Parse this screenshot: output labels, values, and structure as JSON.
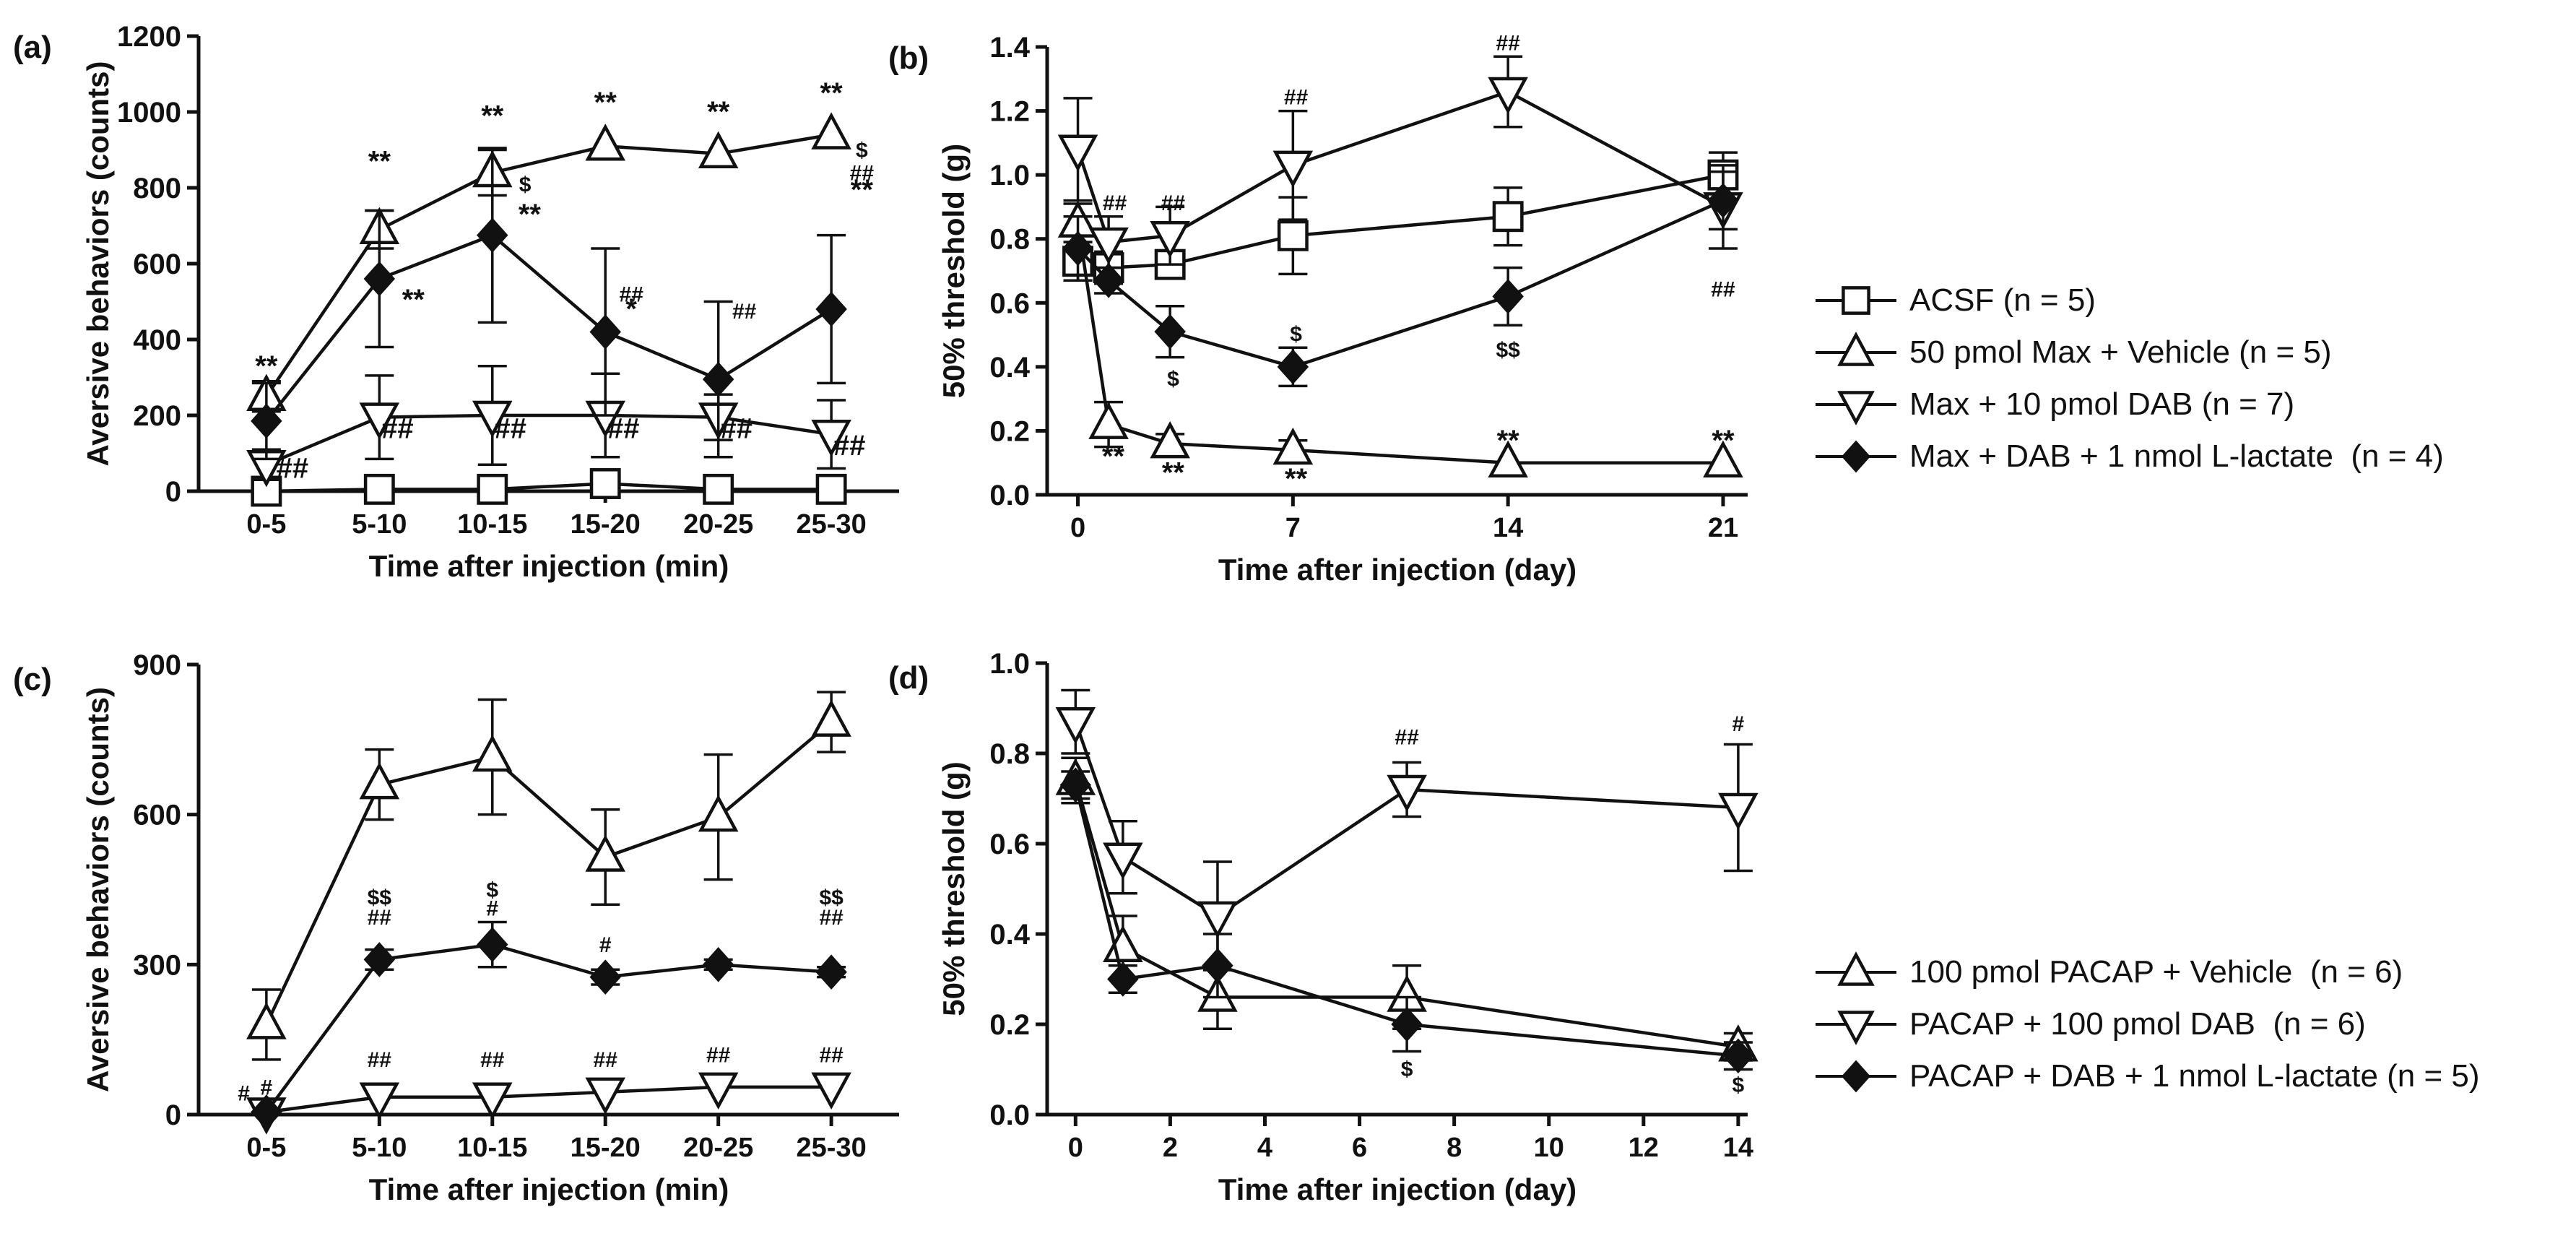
{
  "chart_data": [
    {
      "panel": "(a)",
      "type": "line",
      "xlabel": "Time after injection (min)",
      "ylabel": "Aversive behaviors (counts)",
      "categories": [
        "0-5",
        "5-10",
        "10-15",
        "15-20",
        "20-25",
        "25-30"
      ],
      "ylim": [
        0,
        1200
      ],
      "yticks": [
        0,
        200,
        400,
        600,
        800,
        1000,
        1200
      ],
      "series": [
        {
          "name": "ACSF (n = 5)",
          "marker": "square",
          "values": [
            0,
            5,
            5,
            20,
            5,
            5
          ],
          "err": [
            0,
            0,
            0,
            10,
            0,
            0
          ]
        },
        {
          "name": "50 pmol Max + Vehicle (n = 5)",
          "marker": "triangle-up",
          "values": [
            250,
            690,
            840,
            910,
            890,
            940
          ],
          "err": [
            40,
            50,
            60,
            0,
            0,
            0
          ]
        },
        {
          "name": "Max + 10 pmol DAB (n = 7)",
          "marker": "triangle-down",
          "values": [
            70,
            195,
            200,
            200,
            195,
            150
          ],
          "err": [
            40,
            110,
            130,
            110,
            60,
            90
          ]
        },
        {
          "name": "Max + DAB + 1 nmol L-lactate  (n = 4)",
          "marker": "diamond",
          "values": [
            185,
            560,
            675,
            420,
            295,
            480
          ],
          "err": [
            100,
            180,
            230,
            220,
            205,
            195
          ]
        }
      ],
      "annotations": [
        {
          "ci": 0,
          "y": 305,
          "text": "**"
        },
        {
          "ci": 1,
          "y": 845,
          "text": "**"
        },
        {
          "ci": 2,
          "y": 965,
          "text": "**"
        },
        {
          "ci": 3,
          "y": 1000,
          "text": "**"
        },
        {
          "ci": 4,
          "y": 975,
          "text": "**"
        },
        {
          "ci": 5,
          "y": 1025,
          "text": "**"
        },
        {
          "ci": 0,
          "y": 35,
          "text": "##",
          "dx": 0.23
        },
        {
          "ci": 1,
          "y": 140,
          "text": "##",
          "dx": 0.16
        },
        {
          "ci": 2,
          "y": 140,
          "text": "##",
          "dx": 0.16
        },
        {
          "ci": 3,
          "y": 140,
          "text": "##",
          "dx": 0.16
        },
        {
          "ci": 4,
          "y": 140,
          "text": "##",
          "dx": 0.16
        },
        {
          "ci": 5,
          "y": 95,
          "text": "##",
          "dx": 0.16
        },
        {
          "ci": 1,
          "y": 480,
          "text": "**",
          "dx": 0.3
        },
        {
          "ci": 2,
          "y": 705,
          "text": "**",
          "dx": 0.33
        },
        {
          "ci": 2,
          "y": 790,
          "text": "$",
          "dx": 0.29,
          "small": true
        },
        {
          "ci": 3,
          "y": 500,
          "text": "##",
          "dx": 0.23,
          "small": true
        },
        {
          "ci": 3,
          "y": 455,
          "text": "*",
          "dx": 0.23
        },
        {
          "ci": 4,
          "y": 455,
          "text": "##",
          "dx": 0.23,
          "small": true
        },
        {
          "ci": 5,
          "y": 880,
          "text": "$",
          "dx": 0.27,
          "small": true
        },
        {
          "ci": 5,
          "y": 820,
          "text": "##",
          "dx": 0.27,
          "small": true
        },
        {
          "ci": 5,
          "y": 770,
          "text": "**",
          "dx": 0.27
        }
      ]
    },
    {
      "panel": "(b)",
      "type": "line",
      "xlabel": "Time after injection (day)",
      "ylabel": "50% threshold (g)",
      "xlim": [
        -1,
        21.8
      ],
      "ylim": [
        0,
        1.4
      ],
      "xticks": [
        0,
        7,
        14,
        21
      ],
      "yticks": [
        0.0,
        0.2,
        0.4,
        0.6,
        0.8,
        1.0,
        1.2,
        1.4
      ],
      "series": [
        {
          "name": "ACSF (n = 5)",
          "marker": "square",
          "x": [
            0,
            1,
            3,
            7,
            14,
            21
          ],
          "values": [
            0.73,
            0.71,
            0.72,
            0.81,
            0.87,
            1.0
          ],
          "err": [
            0.06,
            0.05,
            0.04,
            0.12,
            0.09,
            0.07
          ]
        },
        {
          "name": "50 pmol Max + Vehicle (n = 5)",
          "marker": "triangle-up",
          "x": [
            0,
            1,
            3,
            7,
            14,
            21
          ],
          "values": [
            0.85,
            0.22,
            0.16,
            0.14,
            0.1,
            0.1
          ],
          "err": [
            0.06,
            0.07,
            0.03,
            0.03,
            0,
            0
          ]
        },
        {
          "name": "Max + 10 pmol DAB (n = 7)",
          "marker": "triangle-down",
          "x": [
            0,
            1,
            3,
            7,
            14,
            21
          ],
          "values": [
            1.08,
            0.79,
            0.81,
            1.03,
            1.26,
            0.9
          ],
          "err": [
            0.16,
            0.08,
            0.09,
            0.17,
            0.11,
            0.13
          ]
        },
        {
          "name": "Max + DAB + 1 nmol L-lactate  (n = 4)",
          "marker": "diamond",
          "x": [
            0,
            1,
            3,
            7,
            14,
            21
          ],
          "values": [
            0.77,
            0.67,
            0.51,
            0.4,
            0.62,
            0.92
          ],
          "err": [
            0.1,
            0.04,
            0.08,
            0.06,
            0.09,
            0.09
          ]
        }
      ],
      "annotations": [
        {
          "x": 1.15,
          "y": 0.09,
          "text": "**"
        },
        {
          "x": 3.1,
          "y": 0.04,
          "text": "**"
        },
        {
          "x": 7.1,
          "y": 0.02,
          "text": "**"
        },
        {
          "x": 14,
          "y": 0.14,
          "text": "**"
        },
        {
          "x": 21,
          "y": 0.14,
          "text": "**"
        },
        {
          "x": 1.2,
          "y": 0.89,
          "text": "##",
          "small": true
        },
        {
          "x": 3.1,
          "y": 0.89,
          "text": "##",
          "small": true
        },
        {
          "x": 7.1,
          "y": 1.22,
          "text": "##",
          "small": true
        },
        {
          "x": 14,
          "y": 1.39,
          "text": "##",
          "small": true
        },
        {
          "x": 21,
          "y": 0.62,
          "text": "##",
          "small": true
        },
        {
          "x": 3.1,
          "y": 0.34,
          "text": "$",
          "small": true
        },
        {
          "x": 7.1,
          "y": 0.48,
          "text": "$",
          "small": true
        },
        {
          "x": 14,
          "y": 0.43,
          "text": "$$",
          "small": true
        }
      ]
    },
    {
      "panel": "(c)",
      "type": "line",
      "xlabel": "Time after injection (min)",
      "ylabel": "Aversive behaviors (counts)",
      "categories": [
        "0-5",
        "5-10",
        "10-15",
        "15-20",
        "20-25",
        "25-30"
      ],
      "ylim": [
        0,
        900
      ],
      "yticks": [
        0,
        300,
        600,
        900
      ],
      "series": [
        {
          "name": "100 pmol PACAP + Vehicle  (n = 6)",
          "marker": "triangle-up",
          "values": [
            180,
            660,
            715,
            515,
            595,
            785
          ],
          "err": [
            70,
            70,
            115,
            95,
            125,
            60
          ]
        },
        {
          "name": "PACAP + 100 pmol DAB  (n = 6)",
          "marker": "triangle-down",
          "values": [
            5,
            35,
            35,
            45,
            55,
            55
          ],
          "err": [
            0,
            0,
            0,
            0,
            0,
            0
          ]
        },
        {
          "name": "PACAP + DAB + 1 nmol L-lactate (n = 5)",
          "marker": "diamond",
          "values": [
            5,
            310,
            340,
            275,
            300,
            285
          ],
          "err": [
            0,
            20,
            45,
            15,
            10,
            10
          ]
        }
      ],
      "annotations": [
        {
          "ci": 0,
          "y": 28,
          "text": "#",
          "dx": -0.2,
          "small": true
        },
        {
          "ci": 0,
          "y": 40,
          "text": "#",
          "small": true
        },
        {
          "ci": 1,
          "y": 95,
          "text": "##",
          "small": true
        },
        {
          "ci": 2,
          "y": 95,
          "text": "##",
          "small": true
        },
        {
          "ci": 3,
          "y": 95,
          "text": "##",
          "small": true
        },
        {
          "ci": 4,
          "y": 105,
          "text": "##",
          "small": true
        },
        {
          "ci": 5,
          "y": 105,
          "text": "##",
          "small": true
        },
        {
          "ci": 1,
          "y": 420,
          "text": "$$",
          "small": true
        },
        {
          "ci": 1,
          "y": 380,
          "text": "##",
          "small": true
        },
        {
          "ci": 2,
          "y": 435,
          "text": "$",
          "small": true
        },
        {
          "ci": 2,
          "y": 398,
          "text": "#",
          "small": true
        },
        {
          "ci": 3,
          "y": 325,
          "text": "#",
          "small": true
        },
        {
          "ci": 5,
          "y": 420,
          "text": "$$",
          "small": true
        },
        {
          "ci": 5,
          "y": 380,
          "text": "##",
          "small": true
        }
      ]
    },
    {
      "panel": "(d)",
      "type": "line",
      "xlabel": "Time after injection (day)",
      "ylabel": "50% threshold (g)",
      "xlim": [
        -0.6,
        14.2
      ],
      "ylim": [
        0,
        1.0
      ],
      "xticks": [
        0,
        2,
        4,
        6,
        8,
        10,
        12,
        14
      ],
      "yticks": [
        0.0,
        0.2,
        0.4,
        0.6,
        0.8,
        1.0
      ],
      "series": [
        {
          "name": "100 pmol PACAP + Vehicle  (n = 6)",
          "marker": "triangle-up",
          "x": [
            0,
            1,
            3,
            7,
            14
          ],
          "values": [
            0.74,
            0.37,
            0.26,
            0.26,
            0.15
          ],
          "err": [
            0.05,
            0.07,
            0.07,
            0.07,
            0.03
          ]
        },
        {
          "name": "PACAP + 100 pmol DAB  (n = 6)",
          "marker": "triangle-down",
          "x": [
            0,
            1,
            3,
            7,
            14
          ],
          "values": [
            0.87,
            0.57,
            0.44,
            0.72,
            0.68
          ],
          "err": [
            0.07,
            0.08,
            0.12,
            0.06,
            0.14
          ]
        },
        {
          "name": "PACAP + DAB + 1 nmol L-lactate (n = 5)",
          "marker": "diamond",
          "x": [
            0,
            1,
            3,
            7,
            14
          ],
          "values": [
            0.73,
            0.3,
            0.33,
            0.2,
            0.13
          ],
          "err": [
            0.03,
            0.03,
            0.07,
            0.06,
            0.03
          ]
        }
      ],
      "annotations": [
        {
          "x": 7,
          "y": 0.82,
          "text": "##",
          "small": true
        },
        {
          "x": 14,
          "y": 0.85,
          "text": "#",
          "small": true
        },
        {
          "x": 7,
          "y": 0.085,
          "text": "$",
          "small": true
        },
        {
          "x": 14,
          "y": 0.05,
          "text": "$",
          "small": true
        }
      ]
    }
  ],
  "legend_top": [
    {
      "marker": "square",
      "label": "ACSF (n = 5)"
    },
    {
      "marker": "triangle-up",
      "label": "50 pmol Max + Vehicle (n = 5)"
    },
    {
      "marker": "triangle-down",
      "label": "Max + 10 pmol DAB (n = 7)"
    },
    {
      "marker": "diamond",
      "label": "Max + DAB + 1 nmol L-lactate  (n = 4)"
    }
  ],
  "legend_bottom": [
    {
      "marker": "triangle-up",
      "label": "100 pmol PACAP + Vehicle  (n = 6)"
    },
    {
      "marker": "triangle-down",
      "label": "PACAP + 100 pmol DAB  (n = 6)"
    },
    {
      "marker": "diamond",
      "label": "PACAP + DAB + 1 nmol L-lactate (n = 5)"
    }
  ],
  "colors": {
    "ink": "#111111",
    "fill_open": "#ffffff",
    "fill_solid": "#111111",
    "background": "#ffffff"
  }
}
